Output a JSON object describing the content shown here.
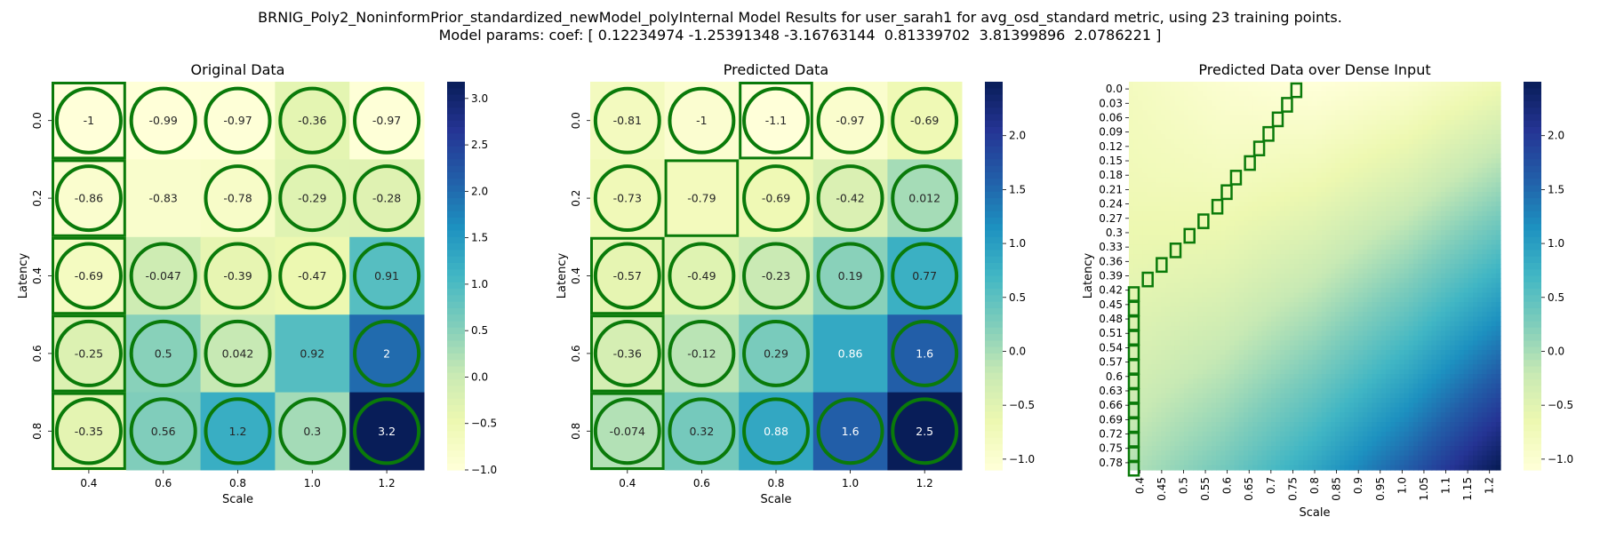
{
  "figure": {
    "title_line1": "BRNIG_Poly2_NoninformPrior_standardized_newModel_polyInternal Model Results for user_sarah1 for avg_osd_standard metric, using 23 training points.",
    "title_line2": "Model params: coef: [ 0.12234974 -1.25391348 -3.16763144  0.81339702  3.81399896  2.0786221 ]"
  },
  "colors": {
    "heatmap_low": "#ffffd9",
    "heatmap_high": "#081d58",
    "highlight": "#0a7a0a"
  },
  "chart_data": [
    {
      "type": "heatmap",
      "id": "original",
      "title": "Original Data",
      "xlabel": "Scale",
      "ylabel": "Latency",
      "x_ticks": [
        "0.4",
        "0.6",
        "0.8",
        "1.0",
        "1.2"
      ],
      "y_ticks": [
        "0.0",
        "0.2",
        "0.4",
        "0.6",
        "0.8"
      ],
      "values": [
        [
          -1,
          -0.99,
          -0.97,
          -0.36,
          -0.97
        ],
        [
          -0.86,
          -0.83,
          -0.78,
          -0.29,
          -0.28
        ],
        [
          -0.69,
          -0.047,
          -0.39,
          -0.47,
          0.91
        ],
        [
          -0.25,
          0.5,
          0.042,
          0.92,
          2
        ],
        [
          -0.35,
          0.56,
          1.2,
          0.3,
          3.2
        ]
      ],
      "circled": [
        [
          1,
          1,
          1,
          1,
          1
        ],
        [
          1,
          0,
          1,
          1,
          1
        ],
        [
          1,
          1,
          1,
          1,
          1
        ],
        [
          1,
          1,
          1,
          0,
          1
        ],
        [
          1,
          1,
          1,
          1,
          1
        ]
      ],
      "boxed_cells": [
        [
          0,
          0
        ],
        [
          1,
          0
        ],
        [
          2,
          0
        ],
        [
          3,
          0
        ],
        [
          4,
          0
        ]
      ],
      "colorbar": {
        "min": -1.0,
        "max": 3.18,
        "ticks": [
          3.0,
          2.5,
          2.0,
          1.5,
          1.0,
          0.5,
          0.0,
          -0.5,
          -1.0
        ],
        "tick_labels": [
          "3.0",
          "2.5",
          "2.0",
          "1.5",
          "1.0",
          "0.5",
          "0.0",
          "−0.5",
          "−1.0"
        ]
      },
      "grid": false
    },
    {
      "type": "heatmap",
      "id": "predicted",
      "title": "Predicted Data",
      "xlabel": "Scale",
      "ylabel": "Latency",
      "x_ticks": [
        "0.4",
        "0.6",
        "0.8",
        "1.0",
        "1.2"
      ],
      "y_ticks": [
        "0.0",
        "0.2",
        "0.4",
        "0.6",
        "0.8"
      ],
      "values": [
        [
          -0.81,
          -1,
          -1.1,
          -0.97,
          -0.69
        ],
        [
          -0.73,
          -0.79,
          -0.69,
          -0.42,
          0.012
        ],
        [
          -0.57,
          -0.49,
          -0.23,
          0.19,
          0.77
        ],
        [
          -0.36,
          -0.12,
          0.29,
          0.86,
          1.6
        ],
        [
          -0.074,
          0.32,
          0.88,
          1.6,
          2.5
        ]
      ],
      "circled": [
        [
          1,
          1,
          1,
          1,
          1
        ],
        [
          1,
          0,
          1,
          1,
          1
        ],
        [
          1,
          1,
          1,
          1,
          1
        ],
        [
          1,
          1,
          1,
          0,
          1
        ],
        [
          1,
          1,
          1,
          1,
          1
        ]
      ],
      "boxed_cells": [
        [
          0,
          2
        ],
        [
          1,
          1
        ],
        [
          2,
          0
        ],
        [
          3,
          0
        ],
        [
          4,
          0
        ]
      ],
      "colorbar": {
        "min": -1.1,
        "max": 2.5,
        "ticks": [
          2.0,
          1.5,
          1.0,
          0.5,
          0.0,
          -0.5,
          -1.0
        ],
        "tick_labels": [
          "2.0",
          "1.5",
          "1.0",
          "0.5",
          "0.0",
          "−0.5",
          "−1.0"
        ]
      },
      "grid": false
    },
    {
      "type": "heatmap",
      "id": "dense",
      "title": "Predicted Data over Dense Input",
      "xlabel": "Scale",
      "ylabel": "Latency",
      "x_ticks": [
        "0.4",
        "0.45",
        "0.5",
        "0.55",
        "0.6",
        "0.65",
        "0.7",
        "0.75",
        "0.8",
        "0.85",
        "0.9",
        "0.95",
        "1.0",
        "1.05",
        "1.1",
        "1.15",
        "1.2"
      ],
      "y_ticks": [
        "0.0",
        "0.03",
        "0.06",
        "0.09",
        "0.12",
        "0.15",
        "0.18",
        "0.21",
        "0.24",
        "0.27",
        "0.3",
        "0.33",
        "0.36",
        "0.39",
        "0.42",
        "0.45",
        "0.48",
        "0.51",
        "0.54",
        "0.57",
        "0.6",
        "0.63",
        "0.66",
        "0.69",
        "0.72",
        "0.75",
        "0.78"
      ],
      "scale_range": [
        0.4,
        1.2
      ],
      "latency_range": [
        0.0,
        0.8
      ],
      "source_grid": {
        "scale": [
          0.4,
          0.6,
          0.8,
          1.0,
          1.2
        ],
        "latency": [
          0.0,
          0.2,
          0.4,
          0.6,
          0.8
        ],
        "values": [
          [
            -0.81,
            -1,
            -1.1,
            -0.97,
            -0.69
          ],
          [
            -0.73,
            -0.79,
            -0.69,
            -0.42,
            0.012
          ],
          [
            -0.57,
            -0.49,
            -0.23,
            0.19,
            0.77
          ],
          [
            -0.36,
            -0.12,
            0.29,
            0.86,
            1.6
          ],
          [
            -0.074,
            0.32,
            0.88,
            1.6,
            2.5
          ]
        ]
      },
      "boundary_path": [
        [
          0.75,
          0.0
        ],
        [
          0.73,
          0.03
        ],
        [
          0.71,
          0.06
        ],
        [
          0.69,
          0.09
        ],
        [
          0.67,
          0.12
        ],
        [
          0.65,
          0.15
        ],
        [
          0.62,
          0.18
        ],
        [
          0.6,
          0.21
        ],
        [
          0.58,
          0.24
        ],
        [
          0.55,
          0.27
        ],
        [
          0.52,
          0.3
        ],
        [
          0.49,
          0.33
        ],
        [
          0.46,
          0.36
        ],
        [
          0.43,
          0.39
        ],
        [
          0.4,
          0.42
        ],
        [
          0.4,
          0.45
        ],
        [
          0.4,
          0.48
        ],
        [
          0.4,
          0.51
        ],
        [
          0.4,
          0.54
        ],
        [
          0.4,
          0.57
        ],
        [
          0.4,
          0.6
        ],
        [
          0.4,
          0.63
        ],
        [
          0.4,
          0.66
        ],
        [
          0.4,
          0.69
        ],
        [
          0.4,
          0.72
        ],
        [
          0.4,
          0.75
        ],
        [
          0.4,
          0.78
        ]
      ],
      "colorbar": {
        "min": -1.1,
        "max": 2.5,
        "ticks": [
          2.0,
          1.5,
          1.0,
          0.5,
          0.0,
          -0.5,
          -1.0
        ],
        "tick_labels": [
          "2.0",
          "1.5",
          "1.0",
          "0.5",
          "0.0",
          "−0.5",
          "−1.0"
        ]
      },
      "grid": false
    }
  ]
}
